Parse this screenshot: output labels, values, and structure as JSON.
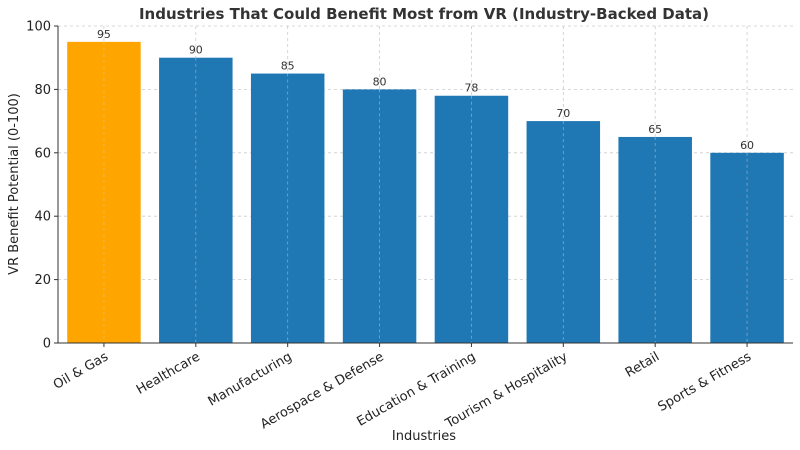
{
  "chart_data": {
    "type": "bar",
    "title": "Industries That Could Benefit Most from VR (Industry-Backed Data)",
    "xlabel": "Industries",
    "ylabel": "VR Benefit Potential (0-100)",
    "categories": [
      "Oil & Gas",
      "Healthcare",
      "Manufacturing",
      "Aerospace & Defense",
      "Education & Training",
      "Tourism & Hospitality",
      "Retail",
      "Sports & Fitness"
    ],
    "values": [
      95,
      90,
      85,
      80,
      78,
      70,
      65,
      60
    ],
    "colors": [
      "#FFA500",
      "#1F77B4",
      "#1F77B4",
      "#1F77B4",
      "#1F77B4",
      "#1F77B4",
      "#1F77B4",
      "#1F77B4"
    ],
    "ylim": [
      0,
      100
    ],
    "yticks": [
      0,
      20,
      40,
      60,
      80,
      100
    ],
    "grid": true
  }
}
